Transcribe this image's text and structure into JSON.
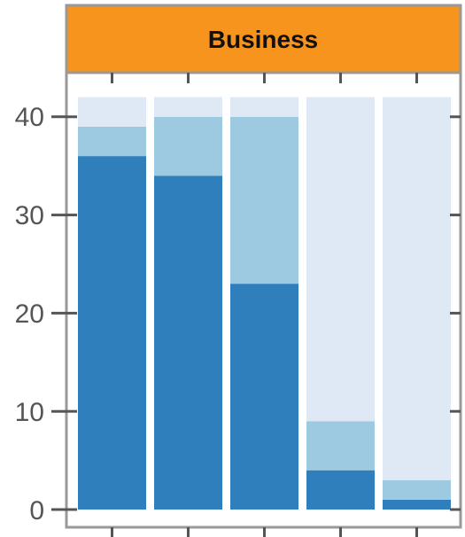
{
  "chart_data": {
    "type": "bar",
    "stacked": true,
    "panel_title": "Business",
    "categories": [
      "",
      "",
      "",
      "",
      ""
    ],
    "total": 42,
    "series": [
      {
        "values": [
          36,
          34,
          23,
          4,
          1
        ]
      },
      {
        "values": [
          3,
          6,
          17,
          5,
          2
        ]
      },
      {
        "values": [
          3,
          2,
          2,
          33,
          39
        ]
      }
    ],
    "yticks": [
      0,
      10,
      20,
      30,
      40
    ],
    "ytick_labels": [
      "0",
      "10",
      "20",
      "30",
      "40"
    ],
    "ylim": [
      0,
      43
    ],
    "grid": false,
    "colors": {
      "series": [
        "#2e7fbc",
        "#9ecae1",
        "#dee9f5"
      ],
      "strip": "#f7941d",
      "frame": "#999999",
      "tick": "#555555"
    }
  }
}
